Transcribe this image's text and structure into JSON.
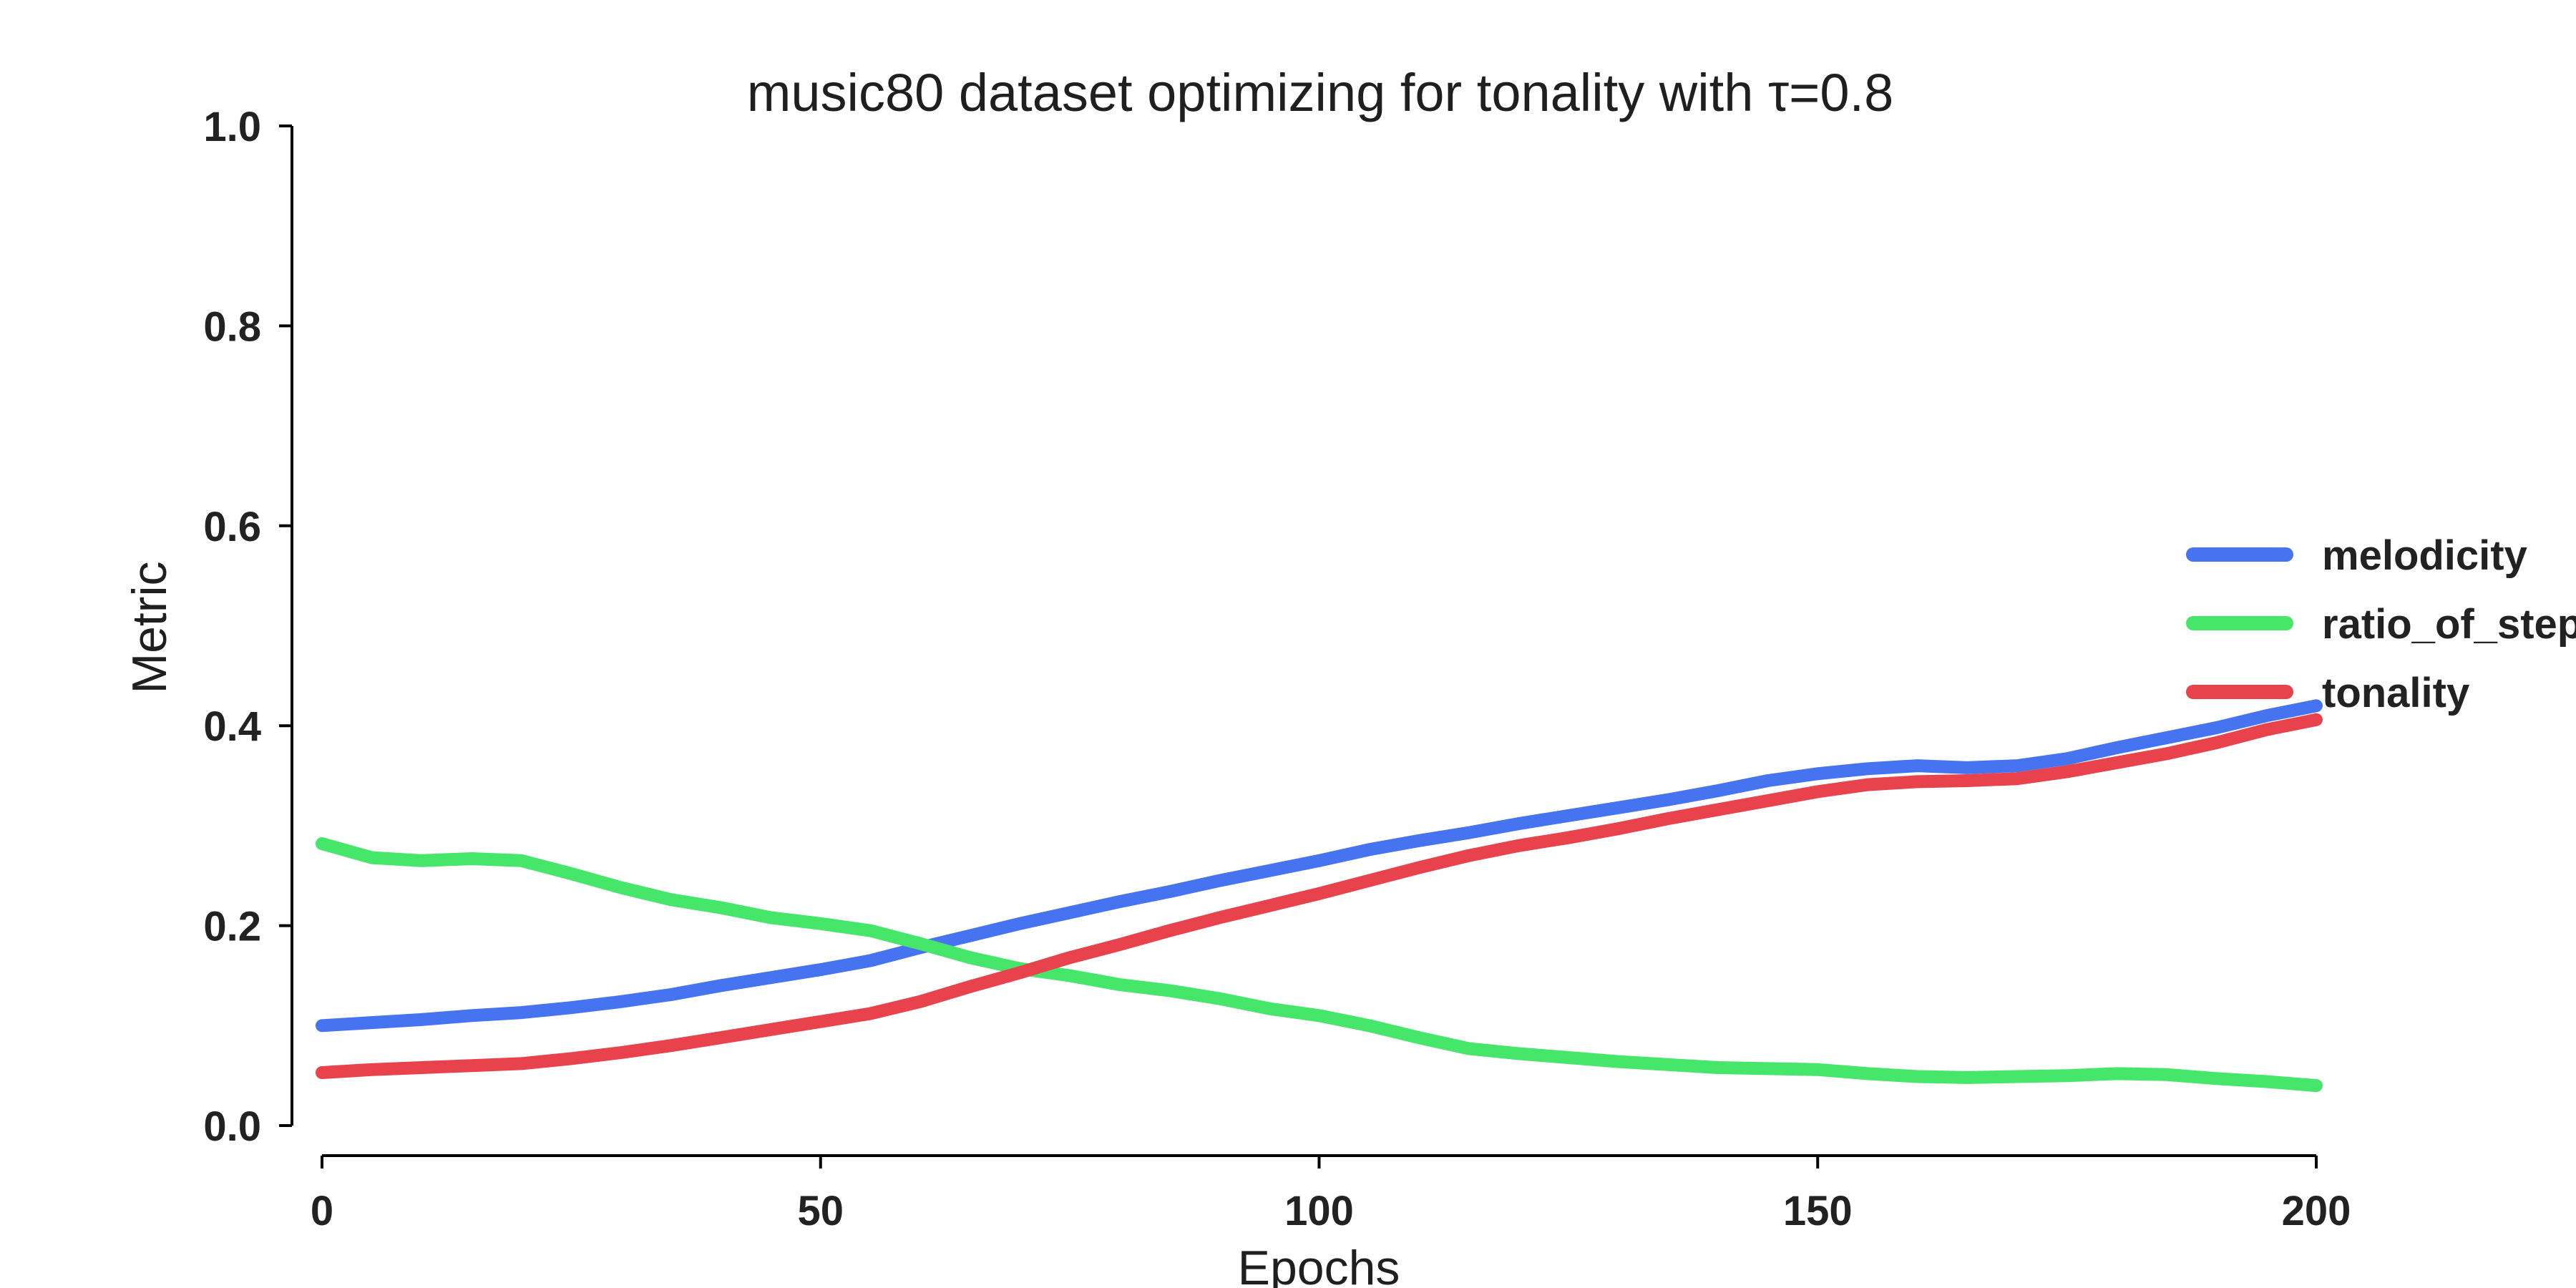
{
  "chart_data": {
    "type": "line",
    "title": "music80 dataset optimizing for tonality with τ=0.8",
    "xlabel": "Epochs",
    "ylabel": "Metric",
    "xlim": [
      0,
      200
    ],
    "ylim": [
      0,
      1.0
    ],
    "x_ticks": [
      "0",
      "50",
      "100",
      "150",
      "200"
    ],
    "y_ticks": [
      "0.0",
      "0.2",
      "0.4",
      "0.6",
      "0.8",
      "1.0"
    ],
    "grid": false,
    "legend_position": "right",
    "x": [
      0,
      5,
      10,
      15,
      20,
      25,
      30,
      35,
      40,
      45,
      50,
      55,
      60,
      65,
      70,
      75,
      80,
      85,
      90,
      95,
      100,
      105,
      110,
      115,
      120,
      125,
      130,
      135,
      140,
      145,
      150,
      155,
      160,
      165,
      170,
      175,
      180,
      185,
      190,
      195,
      200
    ],
    "series": [
      {
        "name": "melodicity",
        "color": "#4674f0",
        "values": [
          0.1,
          0.103,
          0.106,
          0.11,
          0.113,
          0.118,
          0.124,
          0.131,
          0.14,
          0.148,
          0.156,
          0.165,
          0.178,
          0.19,
          0.202,
          0.213,
          0.224,
          0.234,
          0.245,
          0.255,
          0.265,
          0.276,
          0.285,
          0.293,
          0.302,
          0.31,
          0.318,
          0.326,
          0.335,
          0.345,
          0.352,
          0.357,
          0.36,
          0.358,
          0.36,
          0.367,
          0.378,
          0.388,
          0.398,
          0.41,
          0.42
        ]
      },
      {
        "name": "ratio_of_steps",
        "color": "#45e66a",
        "values": [
          0.282,
          0.268,
          0.265,
          0.267,
          0.265,
          0.252,
          0.238,
          0.226,
          0.218,
          0.208,
          0.202,
          0.195,
          0.182,
          0.168,
          0.157,
          0.15,
          0.141,
          0.135,
          0.127,
          0.117,
          0.11,
          0.1,
          0.088,
          0.077,
          0.072,
          0.068,
          0.064,
          0.061,
          0.058,
          0.057,
          0.056,
          0.052,
          0.049,
          0.048,
          0.049,
          0.05,
          0.052,
          0.051,
          0.047,
          0.044,
          0.04
        ]
      },
      {
        "name": "tonality",
        "color": "#e8434d",
        "values": [
          0.053,
          0.056,
          0.058,
          0.06,
          0.062,
          0.067,
          0.073,
          0.08,
          0.088,
          0.096,
          0.104,
          0.112,
          0.124,
          0.139,
          0.153,
          0.168,
          0.181,
          0.195,
          0.208,
          0.22,
          0.232,
          0.245,
          0.258,
          0.27,
          0.28,
          0.288,
          0.297,
          0.307,
          0.316,
          0.325,
          0.334,
          0.341,
          0.344,
          0.345,
          0.347,
          0.354,
          0.363,
          0.372,
          0.383,
          0.396,
          0.406
        ]
      }
    ]
  }
}
